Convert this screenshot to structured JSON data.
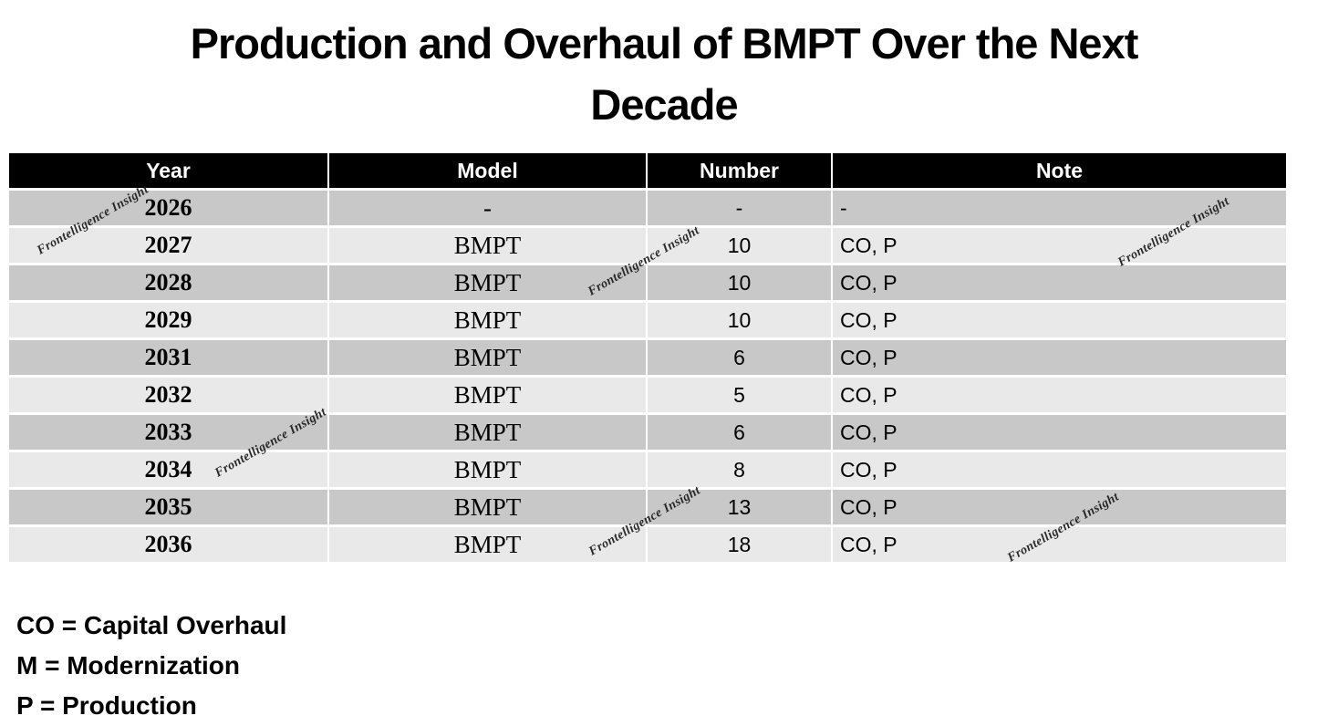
{
  "title": {
    "line1": "Production and Overhaul of BMPT Over the Next",
    "line2": "Decade"
  },
  "table": {
    "headers": [
      "Year",
      "Model",
      "Number",
      "Note"
    ],
    "rows": [
      {
        "year": "2026",
        "model": "-",
        "number": "-",
        "note": "-"
      },
      {
        "year": "2027",
        "model": "BMPT",
        "number": "10",
        "note": "CO, P"
      },
      {
        "year": "2028",
        "model": "BMPT",
        "number": "10",
        "note": "CO, P"
      },
      {
        "year": "2029",
        "model": "BMPT",
        "number": "10",
        "note": "CO, P"
      },
      {
        "year": "2031",
        "model": "BMPT",
        "number": "6",
        "note": "CO, P"
      },
      {
        "year": "2032",
        "model": "BMPT",
        "number": "5",
        "note": "CO, P"
      },
      {
        "year": "2033",
        "model": "BMPT",
        "number": "6",
        "note": "CO, P"
      },
      {
        "year": "2034",
        "model": "BMPT",
        "number": "8",
        "note": "CO, P"
      },
      {
        "year": "2035",
        "model": "BMPT",
        "number": "13",
        "note": "CO, P"
      },
      {
        "year": "2036",
        "model": "BMPT",
        "number": "18",
        "note": "CO, P"
      }
    ],
    "colors": {
      "header_bg": "#000000",
      "header_text": "#ffffff",
      "row_dark": "#c8c8c8",
      "row_light": "#e9e9e9"
    }
  },
  "legend": {
    "line1": "CO = Capital Overhaul",
    "line2": "M = Modernization",
    "line3": "P = Production"
  },
  "watermark": {
    "text": "Frontelligence Insight"
  }
}
